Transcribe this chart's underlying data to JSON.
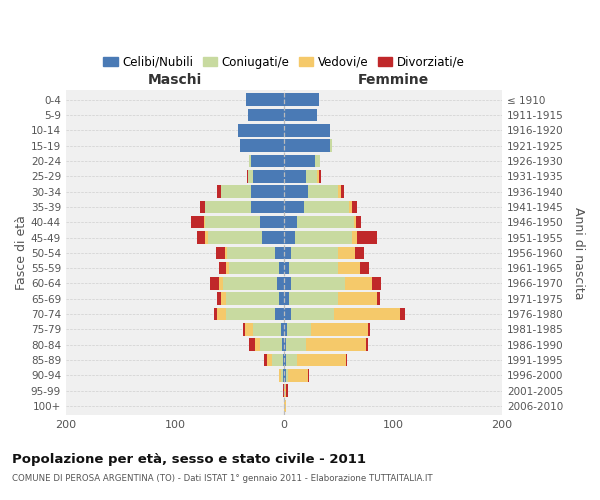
{
  "age_groups": [
    "0-4",
    "5-9",
    "10-14",
    "15-19",
    "20-24",
    "25-29",
    "30-34",
    "35-39",
    "40-44",
    "45-49",
    "50-54",
    "55-59",
    "60-64",
    "65-69",
    "70-74",
    "75-79",
    "80-84",
    "85-89",
    "90-94",
    "95-99",
    "100+"
  ],
  "birth_years": [
    "2006-2010",
    "2001-2005",
    "1996-2000",
    "1991-1995",
    "1986-1990",
    "1981-1985",
    "1976-1980",
    "1971-1975",
    "1966-1970",
    "1961-1965",
    "1956-1960",
    "1951-1955",
    "1946-1950",
    "1941-1945",
    "1936-1940",
    "1931-1935",
    "1926-1930",
    "1921-1925",
    "1916-1920",
    "1911-1915",
    "≤ 1910"
  ],
  "maschi_celibi": [
    35,
    33,
    42,
    40,
    30,
    28,
    30,
    30,
    22,
    20,
    8,
    5,
    6,
    5,
    8,
    3,
    2,
    1,
    1,
    0,
    0
  ],
  "maschi_coniugati": [
    0,
    0,
    0,
    0,
    2,
    5,
    28,
    42,
    50,
    50,
    44,
    45,
    50,
    48,
    45,
    25,
    20,
    10,
    2,
    0,
    0
  ],
  "maschi_vedovi": [
    0,
    0,
    0,
    0,
    0,
    0,
    0,
    0,
    1,
    2,
    2,
    3,
    4,
    5,
    8,
    8,
    5,
    5,
    2,
    0,
    0
  ],
  "maschi_divorziati": [
    0,
    0,
    0,
    0,
    0,
    1,
    3,
    5,
    12,
    8,
    8,
    7,
    8,
    3,
    3,
    2,
    5,
    2,
    0,
    1,
    0
  ],
  "femmine_nubili": [
    32,
    30,
    42,
    42,
    28,
    20,
    22,
    18,
    12,
    10,
    6,
    5,
    6,
    5,
    6,
    3,
    2,
    2,
    2,
    0,
    0
  ],
  "femmine_coniugate": [
    0,
    0,
    0,
    2,
    5,
    10,
    28,
    42,
    52,
    52,
    44,
    45,
    50,
    45,
    40,
    22,
    18,
    10,
    2,
    0,
    0
  ],
  "femmine_vedove": [
    0,
    0,
    0,
    0,
    0,
    2,
    2,
    2,
    2,
    5,
    15,
    20,
    25,
    35,
    60,
    52,
    55,
    45,
    18,
    2,
    2
  ],
  "femmine_divorziate": [
    0,
    0,
    0,
    0,
    0,
    2,
    3,
    5,
    5,
    18,
    8,
    8,
    8,
    3,
    5,
    2,
    2,
    1,
    1,
    2,
    0
  ],
  "color_celibi": "#4a7ab5",
  "color_coniugati": "#c8daa0",
  "color_vedovi": "#f5c96a",
  "color_divorziati": "#c0282a",
  "xlim": 200,
  "title": "Popolazione per età, sesso e stato civile - 2011",
  "subtitle": "COMUNE DI PEROSA ARGENTINA (TO) - Dati ISTAT 1° gennaio 2011 - Elaborazione TUTTAITALIA.IT",
  "ylabel_left": "Fasce di età",
  "ylabel_right": "Anni di nascita",
  "xlabel_maschi": "Maschi",
  "xlabel_femmine": "Femmine",
  "legend_labels": [
    "Celibi/Nubili",
    "Coniugati/e",
    "Vedovi/e",
    "Divorziati/e"
  ],
  "bg_color": "#ffffff",
  "ax_bg_color": "#f0f0f0",
  "grid_color": "#d0d0d0"
}
